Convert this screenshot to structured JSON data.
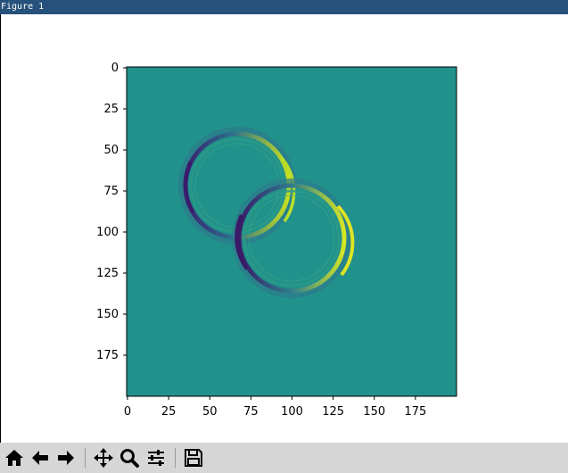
{
  "window": {
    "title": "Figure 1"
  },
  "axes": {
    "y_ticks": [
      "0",
      "25",
      "50",
      "75",
      "100",
      "125",
      "150",
      "175"
    ],
    "x_ticks": [
      "0",
      "25",
      "50",
      "75",
      "100",
      "125",
      "150",
      "175"
    ]
  },
  "chart_data": {
    "type": "heatmap",
    "description_shape": "200x200 image of two overlapping ring-shaped wave patterns on a uniform teal background",
    "xlim": [
      0,
      200
    ],
    "ylim": [
      200,
      0
    ],
    "colormap": "viridis",
    "background_color": "#21918c",
    "rings": [
      {
        "center_x": 67,
        "center_y": 72,
        "radius": 32
      },
      {
        "center_x": 104,
        "center_y": 101,
        "radius": 32
      }
    ]
  },
  "toolbar": {
    "buttons": [
      {
        "id": "home",
        "icon": "home-icon"
      },
      {
        "id": "back",
        "icon": "arrow-left-icon"
      },
      {
        "id": "forward",
        "icon": "arrow-right-icon"
      },
      {
        "id": "pan",
        "icon": "move-icon"
      },
      {
        "id": "zoom",
        "icon": "zoom-icon"
      },
      {
        "id": "configure",
        "icon": "sliders-icon"
      },
      {
        "id": "save",
        "icon": "save-icon"
      }
    ]
  }
}
